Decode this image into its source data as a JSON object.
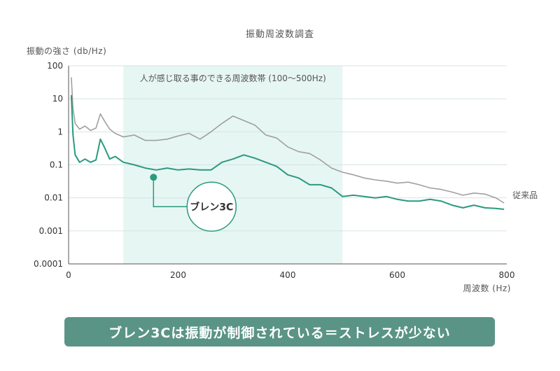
{
  "chart_data": {
    "type": "line",
    "title": "振動周波数調査",
    "ylabel": "振動の強さ (db/Hz)",
    "xlabel": "周波数 (Hz)",
    "y_scale": "log",
    "ylim": [
      0.0001,
      100
    ],
    "xlim": [
      0,
      800
    ],
    "x_ticks": [
      "0",
      "200",
      "400",
      "600",
      "800"
    ],
    "y_ticks": [
      "0.0001",
      "0.001",
      "0.01",
      "0.1",
      "1",
      "10",
      "100"
    ],
    "grid": true,
    "highlight_band": {
      "x_start": 100,
      "x_end": 500,
      "label": "人が感じ取る事のできる周波数帯 (100〜500Hz)"
    },
    "series": [
      {
        "name": "従来品",
        "color": "#a0a0a0",
        "points": [
          [
            5,
            45
          ],
          [
            8,
            5
          ],
          [
            12,
            1.8
          ],
          [
            20,
            1.2
          ],
          [
            30,
            1.5
          ],
          [
            40,
            1.1
          ],
          [
            50,
            1.3
          ],
          [
            58,
            3.5
          ],
          [
            65,
            2.2
          ],
          [
            75,
            1.2
          ],
          [
            85,
            0.9
          ],
          [
            100,
            0.7
          ],
          [
            120,
            0.8
          ],
          [
            140,
            0.55
          ],
          [
            160,
            0.55
          ],
          [
            180,
            0.6
          ],
          [
            200,
            0.75
          ],
          [
            220,
            0.9
          ],
          [
            240,
            0.6
          ],
          [
            260,
            1.0
          ],
          [
            280,
            1.8
          ],
          [
            300,
            3.0
          ],
          [
            320,
            2.2
          ],
          [
            340,
            1.6
          ],
          [
            360,
            0.8
          ],
          [
            380,
            0.65
          ],
          [
            400,
            0.35
          ],
          [
            420,
            0.25
          ],
          [
            440,
            0.22
          ],
          [
            460,
            0.14
          ],
          [
            480,
            0.08
          ],
          [
            500,
            0.06
          ],
          [
            520,
            0.05
          ],
          [
            540,
            0.04
          ],
          [
            560,
            0.035
          ],
          [
            580,
            0.032
          ],
          [
            600,
            0.028
          ],
          [
            620,
            0.03
          ],
          [
            640,
            0.025
          ],
          [
            660,
            0.02
          ],
          [
            680,
            0.018
          ],
          [
            700,
            0.015
          ],
          [
            720,
            0.012
          ],
          [
            740,
            0.014
          ],
          [
            760,
            0.013
          ],
          [
            780,
            0.01
          ],
          [
            795,
            0.007
          ]
        ]
      },
      {
        "name": "ブレン3C",
        "color": "#2a9a7e",
        "points": [
          [
            5,
            13
          ],
          [
            8,
            0.8
          ],
          [
            12,
            0.2
          ],
          [
            20,
            0.12
          ],
          [
            30,
            0.15
          ],
          [
            40,
            0.12
          ],
          [
            50,
            0.14
          ],
          [
            58,
            0.6
          ],
          [
            65,
            0.35
          ],
          [
            75,
            0.15
          ],
          [
            85,
            0.18
          ],
          [
            100,
            0.12
          ],
          [
            120,
            0.1
          ],
          [
            140,
            0.08
          ],
          [
            160,
            0.07
          ],
          [
            180,
            0.08
          ],
          [
            200,
            0.07
          ],
          [
            220,
            0.075
          ],
          [
            240,
            0.07
          ],
          [
            260,
            0.07
          ],
          [
            280,
            0.12
          ],
          [
            300,
            0.15
          ],
          [
            320,
            0.2
          ],
          [
            340,
            0.16
          ],
          [
            360,
            0.12
          ],
          [
            380,
            0.09
          ],
          [
            400,
            0.05
          ],
          [
            420,
            0.04
          ],
          [
            440,
            0.025
          ],
          [
            460,
            0.025
          ],
          [
            480,
            0.02
          ],
          [
            500,
            0.011
          ],
          [
            520,
            0.012
          ],
          [
            540,
            0.011
          ],
          [
            560,
            0.01
          ],
          [
            580,
            0.011
          ],
          [
            600,
            0.009
          ],
          [
            620,
            0.008
          ],
          [
            640,
            0.008
          ],
          [
            660,
            0.009
          ],
          [
            680,
            0.008
          ],
          [
            700,
            0.006
          ],
          [
            720,
            0.005
          ],
          [
            740,
            0.006
          ],
          [
            760,
            0.005
          ],
          [
            780,
            0.0048
          ],
          [
            795,
            0.0045
          ]
        ]
      }
    ],
    "callout": {
      "series": "ブレン3C",
      "x": 155,
      "y": 0.042,
      "text": "ブレン3C"
    },
    "annotation": "ブレン3Cは振動が制御されている＝ストレスが少ない"
  }
}
